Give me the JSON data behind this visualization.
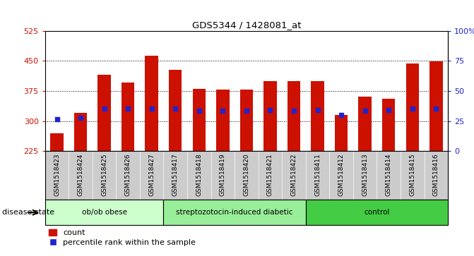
{
  "title": "GDS5344 / 1428081_at",
  "samples": [
    "GSM1518423",
    "GSM1518424",
    "GSM1518425",
    "GSM1518426",
    "GSM1518427",
    "GSM1518417",
    "GSM1518418",
    "GSM1518419",
    "GSM1518420",
    "GSM1518421",
    "GSM1518422",
    "GSM1518411",
    "GSM1518412",
    "GSM1518413",
    "GSM1518414",
    "GSM1518415",
    "GSM1518416"
  ],
  "counts": [
    270,
    320,
    415,
    395,
    462,
    427,
    380,
    378,
    378,
    400,
    400,
    400,
    315,
    360,
    355,
    443,
    448
  ],
  "percentile_values": [
    305,
    308,
    330,
    330,
    330,
    330,
    325,
    325,
    325,
    328,
    325,
    328,
    315,
    325,
    328,
    330,
    330
  ],
  "groups": [
    {
      "name": "ob/ob obese",
      "start": 0,
      "end": 5,
      "color": "#ccffcc"
    },
    {
      "name": "streptozotocin-induced diabetic",
      "start": 5,
      "end": 11,
      "color": "#99ee99"
    },
    {
      "name": "control",
      "start": 11,
      "end": 17,
      "color": "#44cc44"
    }
  ],
  "ylim_left": [
    225,
    525
  ],
  "ylim_right": [
    0,
    100
  ],
  "yticks_left": [
    225,
    300,
    375,
    450,
    525
  ],
  "yticks_right": [
    0,
    25,
    50,
    75,
    100
  ],
  "bar_color": "#cc1100",
  "blue_color": "#2222cc",
  "xticklabel_bg": "#cccccc",
  "bar_width": 0.55,
  "legend_items": [
    "count",
    "percentile rank within the sample"
  ],
  "disease_state_label": "disease state"
}
